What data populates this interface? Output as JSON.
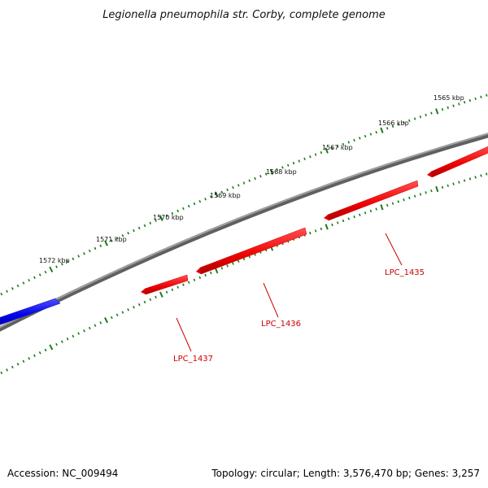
{
  "title": "Legionella pneumophila str. Corby, complete genome",
  "footer": {
    "accession": "Accession: NC_009494",
    "summary": "Topology: circular; Length: 3,576,470 bp; Genes: 3,257"
  },
  "ticks_outer": [
    "1565 kbp",
    "1566 kbp",
    "1567 kbp",
    "1568 kbp",
    "1569 kbp",
    "1570 kbp",
    "1571 kbp",
    "1572 kbp"
  ],
  "genes": [
    {
      "label": "LPC_1435",
      "strand": "reverse",
      "color": "#ff0000"
    },
    {
      "label": "LPC_1436",
      "strand": "reverse",
      "color": "#ff0000"
    },
    {
      "label": "LPC_1437",
      "strand": "reverse",
      "color": "#ff0000"
    },
    {
      "label": "",
      "strand": "forward",
      "color": "#0000ee"
    }
  ],
  "colors": {
    "backbone": "#808080",
    "tick": "#1a7a1a",
    "reverse_gene": "#ff0000",
    "forward_gene": "#0000ee",
    "label": "#cc0000"
  }
}
